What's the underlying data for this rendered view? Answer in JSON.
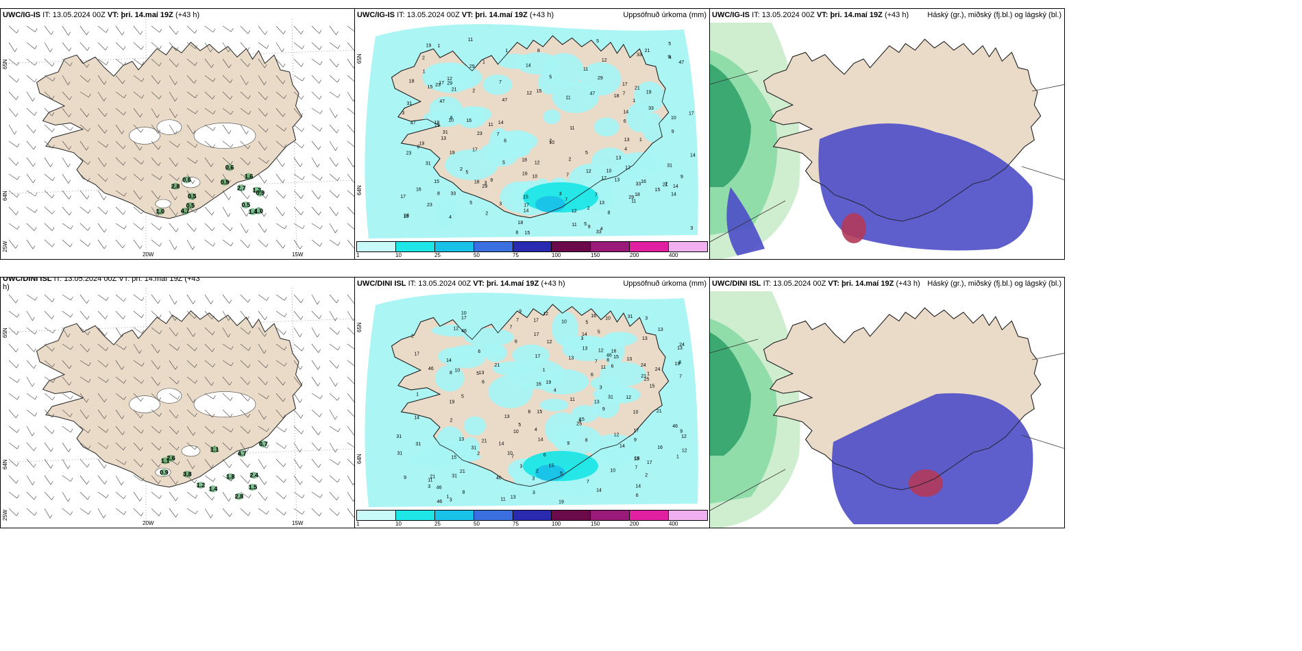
{
  "colors": {
    "land": "#eadbc8",
    "coast": "#222222",
    "ice": "#ffffff",
    "precip_light": "#a8f4f4",
    "precip_10": "#1ee6e6",
    "precip_25": "#19c2e8",
    "cloud_low": "#4d4dc8",
    "cloud_mid": "#2ea06a",
    "cloud_high_light": "#cfeecf",
    "cloud_high_red": "#b23a5a",
    "green_precip": "#1a8a3a"
  },
  "rows": [
    {
      "model": "UWC/IG-IS",
      "it_label": "IT:",
      "it_value": "13.05.2024 00Z",
      "vt_label": "VT:",
      "vt_value": "þri. 14.maí 19Z",
      "lead": "(+43 h)",
      "wind_header_left": "UWC/IG-IS",
      "wind_header_rest": "IT: 13.05.2024 00Z VT: þri. 14.maí 19Z (+43 h)",
      "precip_values": [
        "0.6",
        "1.3",
        "0.9",
        "0.9",
        "0.5",
        "1.0",
        "0.5",
        "0.6",
        "1.4",
        "1.6",
        "2.8",
        "0.5",
        "2.7",
        "4.7",
        "1.0"
      ],
      "precip_numbers": [
        "1",
        "2",
        "3",
        "4",
        "5",
        "6",
        "7",
        "8",
        "9",
        "10",
        "11",
        "12",
        "13",
        "14",
        "15",
        "17",
        "19",
        "21",
        "23",
        "29",
        "31",
        "33",
        "47",
        "16",
        "18"
      ]
    },
    {
      "model": "UWC/DINI ISL",
      "it_label": "IT:",
      "it_value": "13.05.2024 00Z",
      "vt_label": "VT:",
      "vt_value": "þri. 14.maí 19Z",
      "lead": "(+43 h)",
      "wind_header_left": "UWC/DINI ISL",
      "wind_header_rest": "IT: 13.05.2024 00Z VT: þri. 14.maí 19Z (+43",
      "wind_header_wrap": "h)",
      "precip_values": [
        "1.1",
        "1.8",
        "3.8",
        "0.9",
        "2.6",
        "1.2",
        "4.7",
        "1.5",
        "1.4",
        "2.4",
        "1.1",
        "0.7",
        "2.8"
      ],
      "precip_numbers": [
        "1",
        "2",
        "3",
        "4",
        "5",
        "6",
        "7",
        "8",
        "9",
        "10",
        "11",
        "12",
        "13",
        "14",
        "15",
        "16",
        "17",
        "19",
        "21",
        "24",
        "25",
        "31",
        "46"
      ]
    }
  ],
  "precip_title": "Uppsöfnuð úrkoma (mm)",
  "cloud_title": "Háský (gr.), miðský (fj.bl.) og lágský (bl.)",
  "lat_labels": [
    "65N",
    "64N",
    "25W"
  ],
  "lon_labels": [
    "20W",
    "15W"
  ],
  "colorbar": {
    "ticks": [
      "1",
      "10",
      "25",
      "50",
      "75",
      "100",
      "150",
      "200",
      "400"
    ],
    "colors": [
      "#c8fafa",
      "#1ee6e6",
      "#19c2e8",
      "#3a6fe0",
      "#2a2ab0",
      "#6a0a4a",
      "#9a1a7a",
      "#e020a0",
      "#f0b0f0"
    ]
  }
}
